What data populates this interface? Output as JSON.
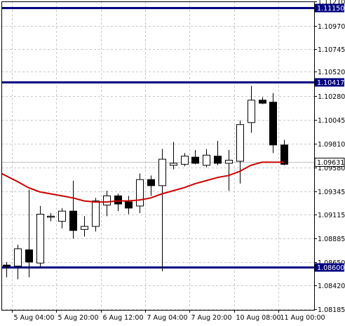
{
  "chart_data": {
    "type": "candlestick",
    "x_tick_labels": [
      "5 Aug 04:00",
      "5 Aug 20:00",
      "6 Aug 12:00",
      "7 Aug 04:00",
      "7 Aug 20:00",
      "10 Aug 08:00",
      "11 Aug 00:00"
    ],
    "y_tick_labels": [
      "1.11210",
      "1.10970",
      "1.10745",
      "1.10520",
      "1.10280",
      "1.10045",
      "1.09810",
      "1.09580",
      "1.09345",
      "1.09115",
      "1.08885",
      "1.08650",
      "1.08420",
      "1.08185"
    ],
    "ylim": [
      1.0818,
      1.1121
    ],
    "grid": true,
    "candles": [
      {
        "o": 1.0862,
        "h": 1.0865,
        "l": 1.085,
        "c": 1.0861
      },
      {
        "o": 1.0861,
        "h": 1.0882,
        "l": 1.0848,
        "c": 1.0878
      },
      {
        "o": 1.0877,
        "h": 1.0936,
        "l": 1.085,
        "c": 1.0865
      },
      {
        "o": 1.0864,
        "h": 1.092,
        "l": 1.086,
        "c": 1.0912
      },
      {
        "o": 1.0909,
        "h": 1.0913,
        "l": 1.0905,
        "c": 1.091
      },
      {
        "o": 1.0905,
        "h": 1.0918,
        "l": 1.0898,
        "c": 1.0915
      },
      {
        "o": 1.0915,
        "h": 1.0945,
        "l": 1.0888,
        "c": 1.0896
      },
      {
        "o": 1.0897,
        "h": 1.091,
        "l": 1.089,
        "c": 1.09
      },
      {
        "o": 1.09,
        "h": 1.0928,
        "l": 1.0895,
        "c": 1.0925
      },
      {
        "o": 1.0921,
        "h": 1.0935,
        "l": 1.091,
        "c": 1.093
      },
      {
        "o": 1.093,
        "h": 1.0932,
        "l": 1.0915,
        "c": 1.0922
      },
      {
        "o": 1.0924,
        "h": 1.093,
        "l": 1.0912,
        "c": 1.0918
      },
      {
        "o": 1.092,
        "h": 1.0952,
        "l": 1.0913,
        "c": 1.0946
      },
      {
        "o": 1.0946,
        "h": 1.095,
        "l": 1.093,
        "c": 1.094
      },
      {
        "o": 1.094,
        "h": 1.0976,
        "l": 1.0856,
        "c": 1.0966
      },
      {
        "o": 1.096,
        "h": 1.0983,
        "l": 1.0956,
        "c": 1.0962
      },
      {
        "o": 1.0961,
        "h": 1.0972,
        "l": 1.0959,
        "c": 1.0969
      },
      {
        "o": 1.0968,
        "h": 1.0975,
        "l": 1.0961,
        "c": 1.0962
      },
      {
        "o": 1.096,
        "h": 1.0976,
        "l": 1.0958,
        "c": 1.097
      },
      {
        "o": 1.0969,
        "h": 1.0984,
        "l": 1.096,
        "c": 1.0962
      },
      {
        "o": 1.0962,
        "h": 1.0975,
        "l": 1.0935,
        "c": 1.0965
      },
      {
        "o": 1.0964,
        "h": 1.1004,
        "l": 1.0942,
        "c": 1.1
      },
      {
        "o": 1.1002,
        "h": 1.1038,
        "l": 1.0992,
        "c": 1.1024
      },
      {
        "o": 1.1024,
        "h": 1.1027,
        "l": 1.102,
        "c": 1.1021
      },
      {
        "o": 1.1022,
        "h": 1.1031,
        "l": 1.0972,
        "c": 1.098
      },
      {
        "o": 1.098,
        "h": 1.0985,
        "l": 1.096,
        "c": 1.0961
      }
    ],
    "moving_average": {
      "color": "#cc0000",
      "values": [
        1.0952,
        1.0944,
        1.0938,
        1.0934,
        1.0932,
        1.093,
        1.0928,
        1.0925,
        1.0924,
        1.0924,
        1.0925,
        1.0925,
        1.0926,
        1.0928,
        1.0932,
        1.0935,
        1.0938,
        1.0942,
        1.0945,
        1.0948,
        1.095,
        1.0954,
        1.096,
        1.0963,
        1.0963,
        1.0963
      ]
    },
    "horizontal_lines": [
      {
        "value": 1.1115,
        "label": "1.11150",
        "style": "level",
        "color": "#000080"
      },
      {
        "value": 1.10417,
        "label": "1.10417",
        "style": "level",
        "color": "#000080"
      },
      {
        "value": 1.086,
        "label": "1.08600",
        "style": "level",
        "color": "#000080"
      },
      {
        "value": 1.09631,
        "label": "1.09631",
        "style": "current",
        "color": "#c0c0c0"
      }
    ]
  }
}
